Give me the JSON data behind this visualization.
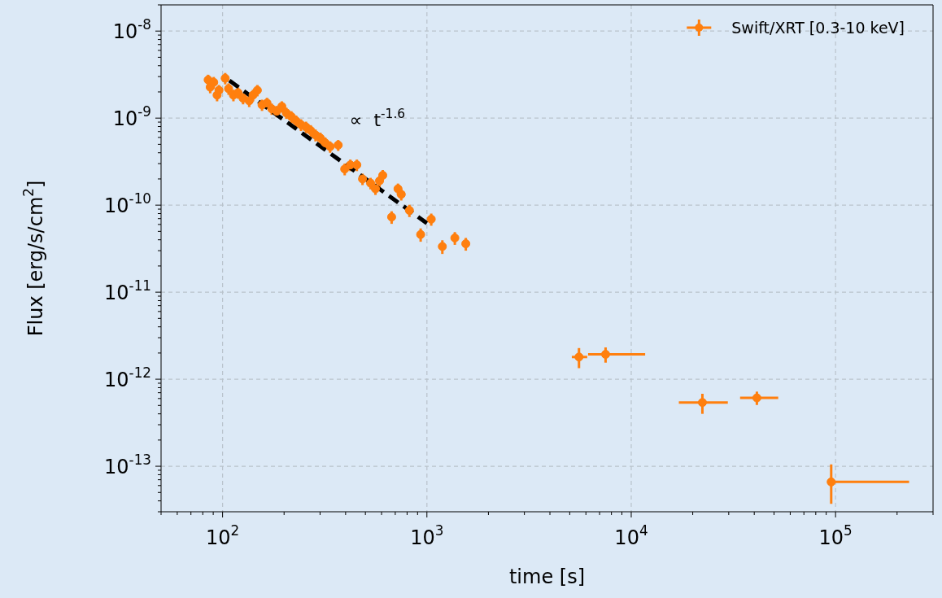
{
  "chart_data": {
    "type": "scatter",
    "xlabel": "time [s]",
    "ylabel": "Flux [erg/s/cm$^{2}$]",
    "log": "xy",
    "grid": true,
    "legend": "top right",
    "marker": "circle",
    "xlim": [
      50,
      300000
    ],
    "xticks": [
      {
        "value": 50,
        "label": null
      },
      {
        "value": 60,
        "label": null
      },
      {
        "value": 70,
        "label": null
      },
      {
        "value": 80,
        "label": null
      },
      {
        "value": 90,
        "label": null
      },
      {
        "value": 100,
        "label": "10$^{2}$"
      },
      {
        "value": 200,
        "label": null
      },
      {
        "value": 300,
        "label": null
      },
      {
        "value": 400,
        "label": null
      },
      {
        "value": 500,
        "label": null
      },
      {
        "value": 600,
        "label": null
      },
      {
        "value": 700,
        "label": null
      },
      {
        "value": 800,
        "label": null
      },
      {
        "value": 900,
        "label": null
      },
      {
        "value": 1000,
        "label": "10$^{3}$"
      },
      {
        "value": 2000,
        "label": null
      },
      {
        "value": 3000,
        "label": null
      },
      {
        "value": 4000,
        "label": null
      },
      {
        "value": 5000,
        "label": null
      },
      {
        "value": 6000,
        "label": null
      },
      {
        "value": 7000,
        "label": null
      },
      {
        "value": 8000,
        "label": null
      },
      {
        "value": 9000,
        "label": null
      },
      {
        "value": 10000,
        "label": "10$^{4}$"
      },
      {
        "value": 20000,
        "label": null
      },
      {
        "value": 30000,
        "label": null
      },
      {
        "value": 40000,
        "label": null
      },
      {
        "value": 50000,
        "label": null
      },
      {
        "value": 60000,
        "label": null
      },
      {
        "value": 70000,
        "label": null
      },
      {
        "value": 80000,
        "label": null
      },
      {
        "value": 90000,
        "label": null
      },
      {
        "value": 100000,
        "label": "10$^{5}$"
      },
      {
        "value": 200000,
        "label": null
      },
      {
        "value": 300000,
        "label": null
      }
    ],
    "ylim": [
      3e-14,
      2e-08
    ],
    "yticks": [
      {
        "value": 3e-14,
        "label": null
      },
      {
        "value": 4e-14,
        "label": null
      },
      {
        "value": 5e-14,
        "label": null
      },
      {
        "value": 6e-14,
        "label": null
      },
      {
        "value": 7e-14,
        "label": null
      },
      {
        "value": 8e-14,
        "label": null
      },
      {
        "value": 9e-14,
        "label": null
      },
      {
        "value": 1e-13,
        "label": "10$^{-13}$"
      },
      {
        "value": 2e-13,
        "label": null
      },
      {
        "value": 3e-13,
        "label": null
      },
      {
        "value": 4e-13,
        "label": null
      },
      {
        "value": 5e-13,
        "label": null
      },
      {
        "value": 6e-13,
        "label": null
      },
      {
        "value": 7e-13,
        "label": null
      },
      {
        "value": 8e-13,
        "label": null
      },
      {
        "value": 9e-13,
        "label": null
      },
      {
        "value": 1e-12,
        "label": "10$^{-12}$"
      },
      {
        "value": 2e-12,
        "label": null
      },
      {
        "value": 3e-12,
        "label": null
      },
      {
        "value": 4e-12,
        "label": null
      },
      {
        "value": 5e-12,
        "label": null
      },
      {
        "value": 6e-12,
        "label": null
      },
      {
        "value": 7e-12,
        "label": null
      },
      {
        "value": 8e-12,
        "label": null
      },
      {
        "value": 9e-12,
        "label": null
      },
      {
        "value": 1e-11,
        "label": "10$^{-11}$"
      },
      {
        "value": 2e-11,
        "label": null
      },
      {
        "value": 3e-11,
        "label": null
      },
      {
        "value": 4e-11,
        "label": null
      },
      {
        "value": 5e-11,
        "label": null
      },
      {
        "value": 6e-11,
        "label": null
      },
      {
        "value": 7e-11,
        "label": null
      },
      {
        "value": 8e-11,
        "label": null
      },
      {
        "value": 9e-11,
        "label": null
      },
      {
        "value": 1e-10,
        "label": "10$^{-10}$"
      },
      {
        "value": 2e-10,
        "label": null
      },
      {
        "value": 3e-10,
        "label": null
      },
      {
        "value": 4e-10,
        "label": null
      },
      {
        "value": 5e-10,
        "label": null
      },
      {
        "value": 6e-10,
        "label": null
      },
      {
        "value": 7e-10,
        "label": null
      },
      {
        "value": 8e-10,
        "label": null
      },
      {
        "value": 9e-10,
        "label": null
      },
      {
        "value": 1e-09,
        "label": "10$^{-9}$"
      },
      {
        "value": 2e-09,
        "label": null
      },
      {
        "value": 3e-09,
        "label": null
      },
      {
        "value": 4e-09,
        "label": null
      },
      {
        "value": 5e-09,
        "label": null
      },
      {
        "value": 6e-09,
        "label": null
      },
      {
        "value": 7e-09,
        "label": null
      },
      {
        "value": 8e-09,
        "label": null
      },
      {
        "value": 9e-09,
        "label": null
      },
      {
        "value": 1e-08,
        "label": "10$^{-8}$"
      },
      {
        "value": 2e-08,
        "label": null
      }
    ],
    "annotations": [
      "∝  t$^{-1.6}$"
    ],
    "series": [
      {
        "name": "Swift/XRT [0.3-10 keV]",
        "color": "#ff7f0e",
        "x": [
          85,
          87,
          90.5,
          94,
          96,
          103,
          107,
          113,
          119,
          126,
          135,
          141,
          148,
          156,
          165,
          174,
          184,
          195,
          205,
          217,
          229,
          242,
          256,
          270,
          285,
          301,
          318,
          336,
          368,
          396,
          422,
          454,
          484,
          530,
          560,
          586,
          608,
          672,
          722,
          749,
          821,
          932,
          1050,
          1190,
          1370,
          1550,
          5550,
          7490,
          22300,
          41200,
          95200
        ],
        "values": [
          2.75e-09,
          2.27e-09,
          2.58e-09,
          1.84e-09,
          2.09e-09,
          2.87e-09,
          2.18e-09,
          1.84e-09,
          1.96e-09,
          1.69e-09,
          1.58e-09,
          1.84e-09,
          2.09e-09,
          1.42e-09,
          1.49e-09,
          1.28e-09,
          1.2e-09,
          1.36e-09,
          1.15e-09,
          1.04e-09,
          9.3e-10,
          8.4e-10,
          7.9e-10,
          7.2e-10,
          6.4e-10,
          5.9e-10,
          5.2e-10,
          4.7e-10,
          4.9e-10,
          2.6e-10,
          2.9e-10,
          2.9e-10,
          2e-10,
          1.79e-10,
          1.54e-10,
          1.9e-10,
          2.2e-10,
          7.3e-11,
          1.54e-10,
          1.33e-10,
          8.7e-11,
          4.6e-11,
          6.9e-11,
          3.35e-11,
          4.2e-11,
          3.6e-11,
          1.8e-12,
          1.93e-12,
          5.4e-13,
          6.1e-13,
          6.6e-14
        ],
        "errors": [
          4e-10,
          3.4e-10,
          3.9e-10,
          2.8e-10,
          3.1e-10,
          4.3e-10,
          3.3e-10,
          2.8e-10,
          2.9e-10,
          2.5e-10,
          2.4e-10,
          2.8e-10,
          3.1e-10,
          2.1e-10,
          2.2e-10,
          1.9e-10,
          1.8e-10,
          2e-10,
          1.7e-10,
          1.6e-10,
          1.4e-10,
          1.3e-10,
          1.2e-10,
          1.1e-10,
          1e-10,
          9e-11,
          8e-11,
          7e-11,
          7e-11,
          4e-11,
          4.4e-11,
          4.4e-11,
          3e-11,
          2.7e-11,
          2.3e-11,
          2.9e-11,
          3.3e-11,
          1.2e-11,
          2.3e-11,
          2e-11,
          1.4e-11,
          8e-12,
          1.1e-11,
          6e-12,
          7e-12,
          6e-12,
          [
            1.34e-12,
            2.28e-12
          ],
          [
            1.55e-12,
            2.32e-12
          ],
          [
            4e-13,
            6.8e-13
          ],
          [
            5.06e-13,
            7.2e-13
          ],
          [
            3.7e-14,
            1.05e-13
          ]
        ],
        "xerrors": [
          null,
          null,
          null,
          null,
          null,
          null,
          null,
          null,
          null,
          null,
          null,
          null,
          null,
          null,
          null,
          null,
          null,
          null,
          null,
          null,
          null,
          null,
          null,
          null,
          null,
          null,
          null,
          null,
          null,
          null,
          null,
          null,
          null,
          null,
          null,
          null,
          null,
          null,
          null,
          null,
          null,
          null,
          null,
          null,
          null,
          null,
          [
            5120,
            6090
          ],
          [
            6150,
            11700
          ],
          [
            17100,
            29700
          ],
          [
            34100,
            52400
          ],
          [
            95200,
            229000
          ]
        ]
      },
      {
        "type": "line",
        "color": "#000000",
        "line_style": "dashed",
        "marker": "none",
        "x": [
          108,
          1000
        ],
        "values": [
          2.7e-09,
          6.2e-11
        ]
      }
    ]
  }
}
